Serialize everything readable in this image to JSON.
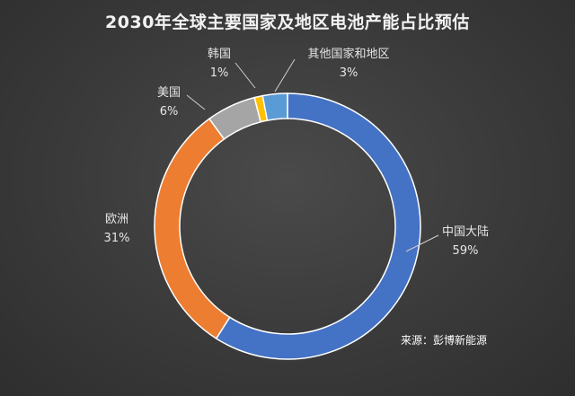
{
  "chart_data": {
    "type": "pie",
    "title": "2030年全球主要国家及地区电池产能占比预估",
    "slices": [
      {
        "name": "中国大陆",
        "value": 59,
        "label": "59%",
        "color": "#4472c4"
      },
      {
        "name": "欧洲",
        "value": 31,
        "label": "31%",
        "color": "#ed7d31"
      },
      {
        "name": "美国",
        "value": 6,
        "label": "6%",
        "color": "#a5a5a5"
      },
      {
        "name": "韩国",
        "value": 1,
        "label": "1%",
        "color": "#ffc000"
      },
      {
        "name": "其他国家和地区",
        "value": 3,
        "label": "3%",
        "color": "#5b9bd5"
      }
    ],
    "donut": true,
    "legend": "none",
    "source": "来源：彭博新能源"
  }
}
